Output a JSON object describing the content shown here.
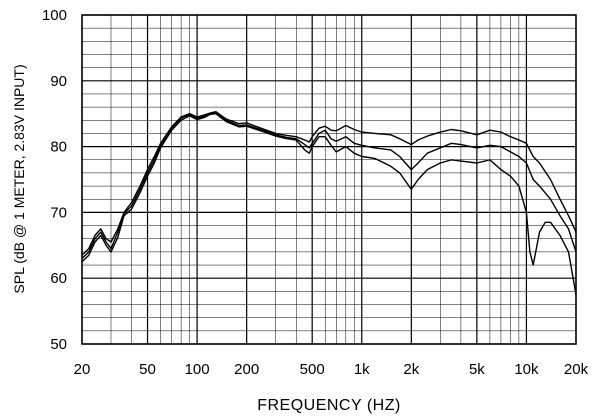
{
  "chart_data": {
    "type": "line",
    "title": "",
    "xlabel": "FREQUENCY (HZ)",
    "ylabel": "SPL (dB @ 1 METER, 2.83V INPUT)",
    "x_scale": "log",
    "xlim": [
      20,
      20000
    ],
    "ylim": [
      50,
      100
    ],
    "grid": true,
    "legend": "none",
    "x_ticks": [
      {
        "value": 20,
        "label": "20"
      },
      {
        "value": 50,
        "label": "50"
      },
      {
        "value": 100,
        "label": "100"
      },
      {
        "value": 200,
        "label": "200"
      },
      {
        "value": 500,
        "label": "500"
      },
      {
        "value": 1000,
        "label": "1k"
      },
      {
        "value": 2000,
        "label": "2k"
      },
      {
        "value": 5000,
        "label": "5k"
      },
      {
        "value": 10000,
        "label": "10k"
      },
      {
        "value": 20000,
        "label": "20k"
      }
    ],
    "y_ticks": [
      {
        "value": 50,
        "label": "50"
      },
      {
        "value": 60,
        "label": "60"
      },
      {
        "value": 70,
        "label": "70"
      },
      {
        "value": 80,
        "label": "80"
      },
      {
        "value": 90,
        "label": "90"
      },
      {
        "value": 100,
        "label": "100"
      }
    ],
    "series": [
      {
        "color": "#000000",
        "points": [
          [
            20,
            63.5
          ],
          [
            22,
            64.5
          ],
          [
            24,
            66.5
          ],
          [
            26,
            67.5
          ],
          [
            28,
            66
          ],
          [
            30,
            65.5
          ],
          [
            33,
            67.5
          ],
          [
            36,
            70
          ],
          [
            40,
            71.5
          ],
          [
            45,
            74
          ],
          [
            50,
            76.5
          ],
          [
            55,
            78.5
          ],
          [
            60,
            80.5
          ],
          [
            70,
            83
          ],
          [
            80,
            84.5
          ],
          [
            90,
            85
          ],
          [
            100,
            84.5
          ],
          [
            110,
            84.8
          ],
          [
            120,
            85.1
          ],
          [
            130,
            85.3
          ],
          [
            150,
            84.2
          ],
          [
            180,
            83.5
          ],
          [
            200,
            83.6
          ],
          [
            250,
            82.7
          ],
          [
            300,
            82
          ],
          [
            350,
            81.7
          ],
          [
            400,
            81.5
          ],
          [
            450,
            81
          ],
          [
            480,
            80.7
          ],
          [
            500,
            81.5
          ],
          [
            550,
            82.8
          ],
          [
            600,
            83.1
          ],
          [
            650,
            82.5
          ],
          [
            700,
            82.4
          ],
          [
            800,
            83.2
          ],
          [
            900,
            82.6
          ],
          [
            1000,
            82.2
          ],
          [
            1200,
            82
          ],
          [
            1500,
            81.8
          ],
          [
            1700,
            81.2
          ],
          [
            2000,
            80.3
          ],
          [
            2200,
            81
          ],
          [
            2500,
            81.6
          ],
          [
            3000,
            82.2
          ],
          [
            3500,
            82.6
          ],
          [
            4000,
            82.4
          ],
          [
            5000,
            81.8
          ],
          [
            6000,
            82.5
          ],
          [
            7000,
            82.2
          ],
          [
            8000,
            81.5
          ],
          [
            9000,
            81
          ],
          [
            10000,
            80.5
          ],
          [
            11000,
            78.5
          ],
          [
            12000,
            77.5
          ],
          [
            14000,
            75
          ],
          [
            16000,
            72
          ],
          [
            18000,
            69.5
          ],
          [
            20000,
            67
          ]
        ]
      },
      {
        "color": "#000000",
        "points": [
          [
            20,
            63
          ],
          [
            22,
            64
          ],
          [
            24,
            66
          ],
          [
            26,
            67
          ],
          [
            28,
            65.5
          ],
          [
            30,
            64.5
          ],
          [
            33,
            67
          ],
          [
            36,
            69.8
          ],
          [
            40,
            71
          ],
          [
            45,
            73.5
          ],
          [
            50,
            76
          ],
          [
            55,
            78
          ],
          [
            60,
            80.2
          ],
          [
            70,
            82.8
          ],
          [
            80,
            84.3
          ],
          [
            90,
            84.9
          ],
          [
            100,
            84.3
          ],
          [
            110,
            84.6
          ],
          [
            120,
            85
          ],
          [
            130,
            85.1
          ],
          [
            150,
            84
          ],
          [
            180,
            83.2
          ],
          [
            200,
            83.3
          ],
          [
            250,
            82.5
          ],
          [
            300,
            81.8
          ],
          [
            350,
            81.4
          ],
          [
            400,
            81.2
          ],
          [
            450,
            80.3
          ],
          [
            480,
            79.8
          ],
          [
            500,
            80.5
          ],
          [
            550,
            82
          ],
          [
            600,
            82.5
          ],
          [
            650,
            81.2
          ],
          [
            700,
            80.8
          ],
          [
            800,
            81.5
          ],
          [
            900,
            80.5
          ],
          [
            1000,
            80.2
          ],
          [
            1200,
            79.8
          ],
          [
            1500,
            79.5
          ],
          [
            1700,
            78.5
          ],
          [
            2000,
            76.5
          ],
          [
            2200,
            77.5
          ],
          [
            2500,
            79
          ],
          [
            3000,
            79.8
          ],
          [
            3500,
            80.5
          ],
          [
            4000,
            80.3
          ],
          [
            5000,
            79.8
          ],
          [
            6000,
            80.2
          ],
          [
            7000,
            80
          ],
          [
            8000,
            79.2
          ],
          [
            9000,
            78.5
          ],
          [
            10000,
            77.5
          ],
          [
            11000,
            75
          ],
          [
            12000,
            74
          ],
          [
            14000,
            72
          ],
          [
            16000,
            69.5
          ],
          [
            18000,
            67.5
          ],
          [
            20000,
            64
          ]
        ]
      },
      {
        "color": "#000000",
        "points": [
          [
            20,
            62.5
          ],
          [
            22,
            63.5
          ],
          [
            24,
            65.5
          ],
          [
            26,
            66.5
          ],
          [
            28,
            65
          ],
          [
            30,
            64
          ],
          [
            33,
            66.2
          ],
          [
            36,
            69.5
          ],
          [
            40,
            70.5
          ],
          [
            45,
            73
          ],
          [
            50,
            75.5
          ],
          [
            55,
            77.5
          ],
          [
            60,
            79.8
          ],
          [
            70,
            82.5
          ],
          [
            80,
            84
          ],
          [
            90,
            84.7
          ],
          [
            100,
            84.1
          ],
          [
            110,
            84.4
          ],
          [
            120,
            84.9
          ],
          [
            130,
            85
          ],
          [
            150,
            83.8
          ],
          [
            180,
            83
          ],
          [
            200,
            83.1
          ],
          [
            250,
            82.3
          ],
          [
            300,
            81.6
          ],
          [
            350,
            81.2
          ],
          [
            400,
            81
          ],
          [
            450,
            79.5
          ],
          [
            480,
            79
          ],
          [
            500,
            80
          ],
          [
            550,
            81.5
          ],
          [
            600,
            81.5
          ],
          [
            650,
            80.2
          ],
          [
            700,
            79.2
          ],
          [
            800,
            80
          ],
          [
            900,
            79
          ],
          [
            1000,
            78.5
          ],
          [
            1200,
            78.2
          ],
          [
            1500,
            77
          ],
          [
            1700,
            76
          ],
          [
            2000,
            73.5
          ],
          [
            2200,
            75
          ],
          [
            2500,
            76.5
          ],
          [
            3000,
            77.5
          ],
          [
            3500,
            78
          ],
          [
            4000,
            77.8
          ],
          [
            5000,
            77.5
          ],
          [
            6000,
            78
          ],
          [
            7000,
            76.5
          ],
          [
            8000,
            75.5
          ],
          [
            9000,
            74
          ],
          [
            10000,
            70
          ],
          [
            10500,
            64
          ],
          [
            11000,
            62
          ],
          [
            12000,
            67
          ],
          [
            13000,
            68.5
          ],
          [
            14000,
            68.5
          ],
          [
            16000,
            66.5
          ],
          [
            18000,
            64
          ],
          [
            20000,
            57.5
          ]
        ]
      }
    ]
  }
}
